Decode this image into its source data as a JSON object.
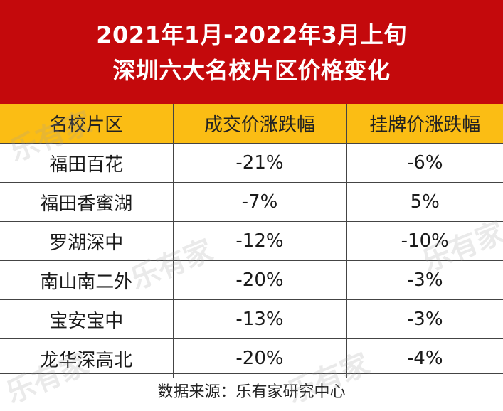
{
  "title": {
    "line1": "2021年1月-2022年3月上旬",
    "line2": "深圳六大名校片区价格变化"
  },
  "table": {
    "headers": [
      "名校片区",
      "成交价涨跌幅",
      "挂牌价涨跌幅"
    ],
    "rows": [
      [
        "福田百花",
        "-21%",
        "-6%"
      ],
      [
        "福田香蜜湖",
        "-7%",
        "5%"
      ],
      [
        "罗湖深中",
        "-12%",
        "-10%"
      ],
      [
        "南山南二外",
        "-20%",
        "-3%"
      ],
      [
        "宝安宝中",
        "-13%",
        "-3%"
      ],
      [
        "龙华深高北",
        "-20%",
        "-4%"
      ]
    ]
  },
  "source": "数据来源：乐有家研究中心",
  "watermark": "乐有家",
  "colors": {
    "banner": "#c4090c",
    "header": "#fbbd14",
    "border": "#444444"
  }
}
